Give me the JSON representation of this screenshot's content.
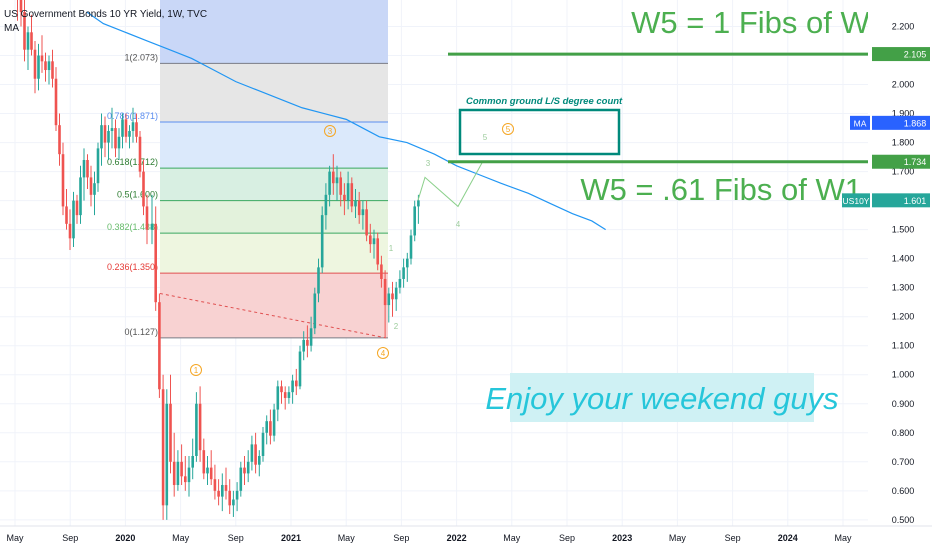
{
  "header": {
    "title": "US Government Bonds 10 YR Yield, 1W, TVC",
    "indicator": "MA"
  },
  "chart_data": {
    "type": "candlestick",
    "symbol": "US10Y",
    "y_ticks": [
      2.2,
      2.1,
      2.0,
      1.9,
      1.8,
      1.7,
      1.6,
      1.5,
      1.4,
      1.3,
      1.2,
      1.1,
      1.0,
      0.9,
      0.8,
      0.7,
      0.6,
      0.5
    ],
    "y_tick_labels": [
      "2.200",
      "2.100",
      "2.000",
      "1.900",
      "1.800",
      "1.700",
      "1.600",
      "1.500",
      "1.400",
      "1.300",
      "1.200",
      "1.100",
      "1.000",
      "0.900",
      "0.800",
      "0.700",
      "0.600",
      "0.500"
    ],
    "x_ticks": [
      {
        "label": "May",
        "bold": false
      },
      {
        "label": "Sep",
        "bold": false
      },
      {
        "label": "2020",
        "bold": true
      },
      {
        "label": "May",
        "bold": false
      },
      {
        "label": "Sep",
        "bold": false
      },
      {
        "label": "2021",
        "bold": true
      },
      {
        "label": "May",
        "bold": false
      },
      {
        "label": "Sep",
        "bold": false
      },
      {
        "label": "2022",
        "bold": true
      },
      {
        "label": "May",
        "bold": false
      },
      {
        "label": "Sep",
        "bold": false
      },
      {
        "label": "2023",
        "bold": true
      },
      {
        "label": "May",
        "bold": false
      },
      {
        "label": "Sep",
        "bold": false
      },
      {
        "label": "2024",
        "bold": true
      },
      {
        "label": "May",
        "bold": false
      }
    ],
    "price_tags": [
      {
        "value": 2.105,
        "label": "2.105",
        "color": "#43a047"
      },
      {
        "value": 1.868,
        "label": "1.868",
        "color": "#2962ff",
        "name": "MA"
      },
      {
        "value": 1.734,
        "label": "1.734",
        "color": "#43a047"
      },
      {
        "value": 1.601,
        "label": "1.601",
        "color": "#26a69a",
        "name": "US10Y"
      }
    ],
    "fib_levels": [
      {
        "label": "1(2.073)",
        "value": 2.073
      },
      {
        "label": "0.786(1.871)",
        "value": 1.871
      },
      {
        "label": "0.618(1.712)",
        "value": 1.712
      },
      {
        "label": "0.5(1.600)",
        "value": 1.6
      },
      {
        "label": "0.382(1.488)",
        "value": 1.488
      },
      {
        "label": "0.236(1.350)",
        "value": 1.35
      },
      {
        "label": "0(1.127)",
        "value": 1.127
      }
    ],
    "fib_colors": [
      "#c9d7f7",
      "#e6e6e6",
      "#dbe9fb",
      "#d8efe2",
      "#e3f2dc",
      "#eef6e0",
      "#f8d2d2"
    ],
    "wave_labels": [
      {
        "text": "1",
        "circled": true
      },
      {
        "text": "3",
        "circled": true
      },
      {
        "text": "4",
        "circled": true
      },
      {
        "text": "5",
        "circled": true
      },
      {
        "text": "1",
        "circled": false
      },
      {
        "text": "2",
        "circled": false
      },
      {
        "text": "3",
        "circled": false
      },
      {
        "text": "4",
        "circled": false
      },
      {
        "text": "5",
        "circled": false
      }
    ],
    "annotations": {
      "w5_top": "W5 = 1 Fibs of W1",
      "w5_mid": "W5 = .61 Fibs of W1",
      "common_ground": "Common ground L/S degree count",
      "weekend": "Enjoy your weekend guys"
    },
    "colors": {
      "up": "#26a69a",
      "down": "#ef5350",
      "ma": "#2196f3",
      "green_line": "#43a047",
      "box": "#00897b"
    },
    "ma_path": [
      [
        1.3,
        2.25
      ],
      [
        1.6,
        2.21
      ],
      [
        2.0,
        2.18
      ],
      [
        2.4,
        2.15
      ],
      [
        2.8,
        2.12
      ],
      [
        3.2,
        2.09
      ],
      [
        3.6,
        2.05
      ],
      [
        4.0,
        2.01
      ],
      [
        4.4,
        1.98
      ],
      [
        4.8,
        1.95
      ],
      [
        5.2,
        1.92
      ],
      [
        5.6,
        1.9
      ],
      [
        6.0,
        1.88
      ],
      [
        6.3,
        1.85
      ],
      [
        6.6,
        1.82
      ],
      [
        7.1,
        1.8
      ],
      [
        7.6,
        1.76
      ],
      [
        8.0,
        1.72
      ],
      [
        8.4,
        1.69
      ],
      [
        8.8,
        1.66
      ],
      [
        9.3,
        1.625
      ],
      [
        9.7,
        1.59
      ],
      [
        10.1,
        1.555
      ],
      [
        10.45,
        1.53
      ],
      [
        10.7,
        1.5
      ]
    ],
    "projection_path": [
      [
        20.6,
        1.601
      ],
      [
        20.9,
        1.68
      ],
      [
        22.5,
        1.58
      ],
      [
        23.6,
        1.73
      ]
    ],
    "candles_before_2020": [
      [
        2.47,
        2.55,
        2.32,
        2.35
      ],
      [
        2.35,
        2.42,
        2.22,
        2.3
      ],
      [
        2.3,
        2.38,
        2.2,
        2.25
      ],
      [
        2.25,
        2.3,
        2.08,
        2.12
      ],
      [
        2.12,
        2.2,
        2.05,
        2.18
      ],
      [
        2.18,
        2.24,
        2.1,
        2.12
      ],
      [
        2.12,
        2.15,
        1.97,
        2.02
      ],
      [
        2.02,
        2.14,
        1.98,
        2.1
      ],
      [
        2.1,
        2.17,
        2.04,
        2.08
      ],
      [
        2.08,
        2.11,
        2.01,
        2.05
      ],
      [
        2.05,
        2.1,
        2.0,
        2.08
      ],
      [
        2.08,
        2.12,
        1.99,
        2.02
      ],
      [
        2.02,
        2.06,
        1.84,
        1.86
      ],
      [
        1.86,
        1.9,
        1.72,
        1.76
      ],
      [
        1.76,
        1.8,
        1.55,
        1.58
      ],
      [
        1.58,
        1.64,
        1.5,
        1.52
      ],
      [
        1.52,
        1.57,
        1.43,
        1.47
      ],
      [
        1.47,
        1.63,
        1.44,
        1.6
      ],
      [
        1.6,
        1.62,
        1.52,
        1.55
      ],
      [
        1.55,
        1.72,
        1.52,
        1.68
      ],
      [
        1.68,
        1.78,
        1.6,
        1.74
      ],
      [
        1.74,
        1.76,
        1.64,
        1.68
      ],
      [
        1.68,
        1.72,
        1.58,
        1.62
      ],
      [
        1.62,
        1.7,
        1.55,
        1.66
      ],
      [
        1.66,
        1.8,
        1.63,
        1.78
      ],
      [
        1.78,
        1.9,
        1.72,
        1.86
      ],
      [
        1.86,
        1.89,
        1.75,
        1.8
      ],
      [
        1.8,
        1.86,
        1.74,
        1.84
      ],
      [
        1.84,
        1.92,
        1.78,
        1.85
      ],
      [
        1.85,
        1.88,
        1.75,
        1.78
      ],
      [
        1.78,
        1.85,
        1.74,
        1.82
      ],
      [
        1.82,
        1.9,
        1.78,
        1.88
      ],
      [
        1.88,
        1.9,
        1.8,
        1.82
      ],
      [
        1.82,
        1.86,
        1.78,
        1.84
      ],
      [
        1.84,
        1.92,
        1.8,
        1.87
      ],
      [
        1.87,
        1.9,
        1.8,
        1.82
      ],
      [
        1.82,
        1.84,
        1.68,
        1.7
      ],
      [
        1.7,
        1.74,
        1.55,
        1.58
      ],
      [
        1.58,
        1.62,
        1.45,
        1.5
      ]
    ],
    "candles_after_2020": [
      [
        1.5,
        1.62,
        1.45,
        1.52
      ],
      [
        1.52,
        1.58,
        1.22,
        1.25
      ],
      [
        1.25,
        1.28,
        0.92,
        0.95
      ],
      [
        0.95,
        1.0,
        0.5,
        0.55
      ],
      [
        0.55,
        0.95,
        0.5,
        0.9
      ],
      [
        0.9,
        1.0,
        0.66,
        0.7
      ],
      [
        0.7,
        0.8,
        0.58,
        0.62
      ],
      [
        0.62,
        0.74,
        0.6,
        0.7
      ],
      [
        0.7,
        0.76,
        0.62,
        0.65
      ],
      [
        0.65,
        0.72,
        0.6,
        0.63
      ],
      [
        0.63,
        0.72,
        0.58,
        0.68
      ],
      [
        0.68,
        0.78,
        0.64,
        0.72
      ],
      [
        0.72,
        0.94,
        0.7,
        0.9
      ],
      [
        0.9,
        0.96,
        0.7,
        0.74
      ],
      [
        0.74,
        0.78,
        0.64,
        0.66
      ],
      [
        0.66,
        0.72,
        0.62,
        0.68
      ],
      [
        0.68,
        0.74,
        0.62,
        0.64
      ],
      [
        0.64,
        0.69,
        0.57,
        0.6
      ],
      [
        0.6,
        0.64,
        0.55,
        0.58
      ],
      [
        0.58,
        0.66,
        0.53,
        0.62
      ],
      [
        0.62,
        0.68,
        0.57,
        0.6
      ],
      [
        0.6,
        0.64,
        0.52,
        0.55
      ],
      [
        0.55,
        0.6,
        0.51,
        0.57
      ],
      [
        0.57,
        0.63,
        0.53,
        0.6
      ],
      [
        0.6,
        0.7,
        0.58,
        0.68
      ],
      [
        0.68,
        0.72,
        0.62,
        0.66
      ],
      [
        0.66,
        0.74,
        0.63,
        0.7
      ],
      [
        0.7,
        0.79,
        0.67,
        0.76
      ],
      [
        0.76,
        0.8,
        0.66,
        0.69
      ],
      [
        0.69,
        0.74,
        0.65,
        0.72
      ],
      [
        0.72,
        0.82,
        0.7,
        0.8
      ],
      [
        0.8,
        0.86,
        0.76,
        0.84
      ],
      [
        0.84,
        0.88,
        0.76,
        0.79
      ],
      [
        0.79,
        0.9,
        0.77,
        0.88
      ],
      [
        0.88,
        0.98,
        0.84,
        0.96
      ],
      [
        0.96,
        0.98,
        0.9,
        0.94
      ],
      [
        0.94,
        0.96,
        0.88,
        0.92
      ],
      [
        0.92,
        0.96,
        0.9,
        0.94
      ],
      [
        0.94,
        1.0,
        0.9,
        0.98
      ],
      [
        0.98,
        1.02,
        0.93,
        0.96
      ],
      [
        0.96,
        1.1,
        0.95,
        1.08
      ],
      [
        1.08,
        1.15,
        1.05,
        1.12
      ],
      [
        1.12,
        1.17,
        1.06,
        1.1
      ],
      [
        1.1,
        1.2,
        1.08,
        1.16
      ],
      [
        1.16,
        1.3,
        1.14,
        1.28
      ],
      [
        1.28,
        1.4,
        1.25,
        1.37
      ],
      [
        1.37,
        1.58,
        1.35,
        1.55
      ],
      [
        1.55,
        1.66,
        1.5,
        1.62
      ],
      [
        1.62,
        1.72,
        1.58,
        1.7
      ],
      [
        1.7,
        1.76,
        1.62,
        1.66
      ],
      [
        1.66,
        1.72,
        1.6,
        1.68
      ],
      [
        1.68,
        1.7,
        1.58,
        1.62
      ],
      [
        1.62,
        1.66,
        1.55,
        1.6
      ],
      [
        1.6,
        1.7,
        1.57,
        1.66
      ],
      [
        1.66,
        1.68,
        1.56,
        1.58
      ],
      [
        1.58,
        1.64,
        1.54,
        1.6
      ],
      [
        1.6,
        1.63,
        1.52,
        1.55
      ],
      [
        1.55,
        1.6,
        1.5,
        1.57
      ],
      [
        1.57,
        1.6,
        1.46,
        1.48
      ],
      [
        1.48,
        1.52,
        1.42,
        1.45
      ],
      [
        1.45,
        1.5,
        1.4,
        1.47
      ],
      [
        1.47,
        1.49,
        1.36,
        1.38
      ],
      [
        1.38,
        1.41,
        1.3,
        1.33
      ],
      [
        1.33,
        1.36,
        1.13,
        1.24
      ],
      [
        1.24,
        1.3,
        1.18,
        1.28
      ],
      [
        1.28,
        1.32,
        1.2,
        1.26
      ],
      [
        1.26,
        1.32,
        1.22,
        1.3
      ],
      [
        1.3,
        1.36,
        1.28,
        1.33
      ],
      [
        1.33,
        1.4,
        1.3,
        1.37
      ],
      [
        1.37,
        1.42,
        1.32,
        1.4
      ],
      [
        1.4,
        1.5,
        1.38,
        1.48
      ],
      [
        1.48,
        1.6,
        1.46,
        1.58
      ],
      [
        1.58,
        1.62,
        1.52,
        1.601
      ]
    ]
  }
}
